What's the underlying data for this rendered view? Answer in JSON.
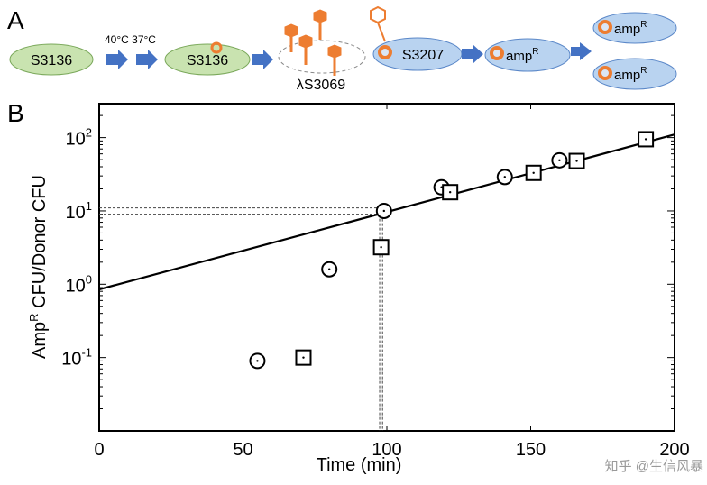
{
  "panel_a": {
    "label": "A",
    "temps": "40°C 37°C",
    "cell1": "S3136",
    "cell2": "S3136",
    "phage": "λS3069",
    "recipient": "S3207",
    "amp": "amp",
    "amp_sup": "R",
    "colors": {
      "donor_fill": "#c9e3b0",
      "donor_stroke": "#7aa85a",
      "recipient_fill": "#b9d3f0",
      "recipient_stroke": "#5a87c8",
      "arrow": "#4472c4",
      "phage": "#ed7d31"
    }
  },
  "panel_b": {
    "label": "B"
  },
  "watermark": "知乎 @生信风暴",
  "chart_data": {
    "type": "scatter",
    "xlabel": "Time (min)",
    "ylabel_main": "Amp",
    "ylabel_sup": "R",
    "ylabel_rest": " CFU/Donor CFU",
    "xlim": [
      0,
      200
    ],
    "ylim": [
      0.01,
      290
    ],
    "yscale": "log",
    "grid": false,
    "xticks": [
      {
        "v": 0,
        "label": "0"
      },
      {
        "v": 50,
        "label": "50"
      },
      {
        "v": 100,
        "label": "100"
      },
      {
        "v": 150,
        "label": "150"
      },
      {
        "v": 200,
        "label": "200"
      }
    ],
    "yticks": [
      {
        "v": 0.1,
        "base": "10",
        "exp": "-1"
      },
      {
        "v": 1,
        "base": "10",
        "exp": "0"
      },
      {
        "v": 10,
        "base": "10",
        "exp": "1"
      },
      {
        "v": 100,
        "base": "10",
        "exp": "2"
      }
    ],
    "series": [
      {
        "marker": "circle",
        "points": [
          [
            55,
            0.09
          ],
          [
            80,
            1.6
          ],
          [
            99,
            10
          ],
          [
            119,
            21
          ],
          [
            141,
            29
          ],
          [
            160,
            49
          ]
        ]
      },
      {
        "marker": "square",
        "points": [
          [
            71,
            0.1
          ],
          [
            98,
            3.2
          ],
          [
            122,
            18
          ],
          [
            151,
            33
          ],
          [
            166,
            48
          ],
          [
            190,
            95
          ]
        ]
      }
    ],
    "fit_line": {
      "x": [
        0,
        200
      ],
      "y": [
        0.85,
        110
      ]
    },
    "reference_lines": {
      "y": [
        9,
        11
      ],
      "x": [
        97.5,
        98.5
      ]
    }
  }
}
